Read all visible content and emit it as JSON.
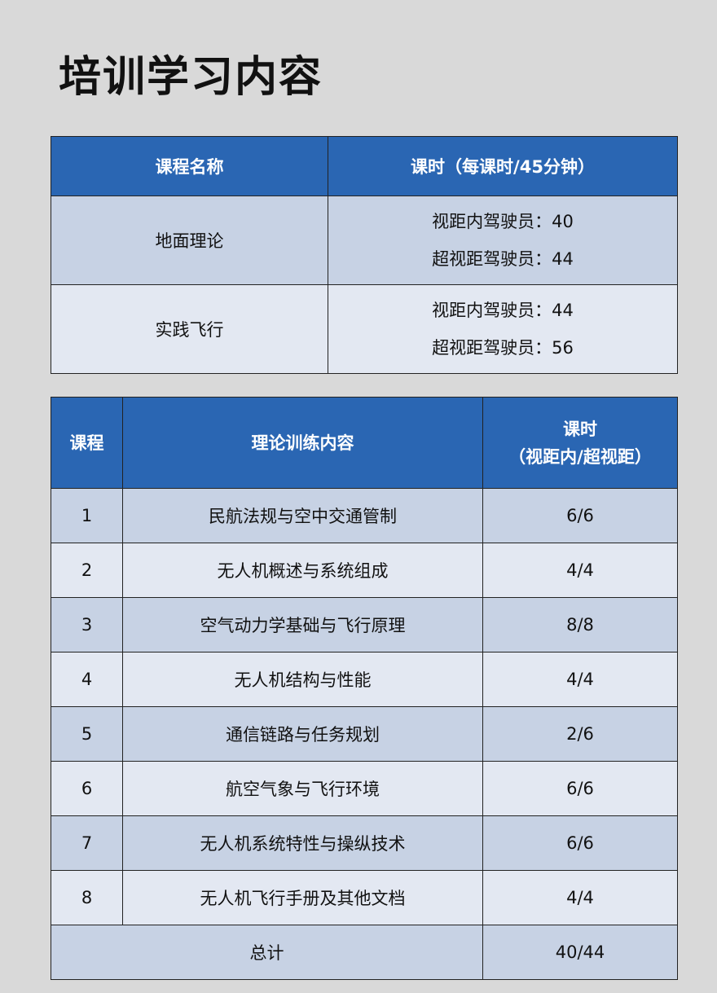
{
  "title": "培训学习内容",
  "table1": {
    "headers": [
      "课程名称",
      "课时（每课时/45分钟）"
    ],
    "rows": [
      {
        "name": "地面理论",
        "lines": [
          "视距内驾驶员：40",
          "超视距驾驶员：44"
        ]
      },
      {
        "name": "实践飞行",
        "lines": [
          "视距内驾驶员：44",
          "超视距驾驶员：56"
        ]
      }
    ]
  },
  "table2": {
    "headers": [
      "课程",
      "理论训练内容",
      "课时",
      "（视距内/超视距）"
    ],
    "rows": [
      {
        "no": "1",
        "content": "民航法规与空中交通管制",
        "hours": "6/6"
      },
      {
        "no": "2",
        "content": "无人机概述与系统组成",
        "hours": "4/4"
      },
      {
        "no": "3",
        "content": "空气动力学基础与飞行原理",
        "hours": "8/8"
      },
      {
        "no": "4",
        "content": "无人机结构与性能",
        "hours": "4/4"
      },
      {
        "no": "5",
        "content": "通信链路与任务规划",
        "hours": "2/6"
      },
      {
        "no": "6",
        "content": "航空气象与飞行环境",
        "hours": "6/6"
      },
      {
        "no": "7",
        "content": "无人机系统特性与操纵技术",
        "hours": "6/6"
      },
      {
        "no": "8",
        "content": "无人机飞行手册及其他文档",
        "hours": "4/4"
      }
    ],
    "total_label": "总计",
    "total_hours": "40/44"
  },
  "colors": {
    "header": "#2a66b3",
    "row_dark": "#c7d2e4",
    "row_light": "#e3e8f2",
    "background": "#d9d9d9"
  }
}
